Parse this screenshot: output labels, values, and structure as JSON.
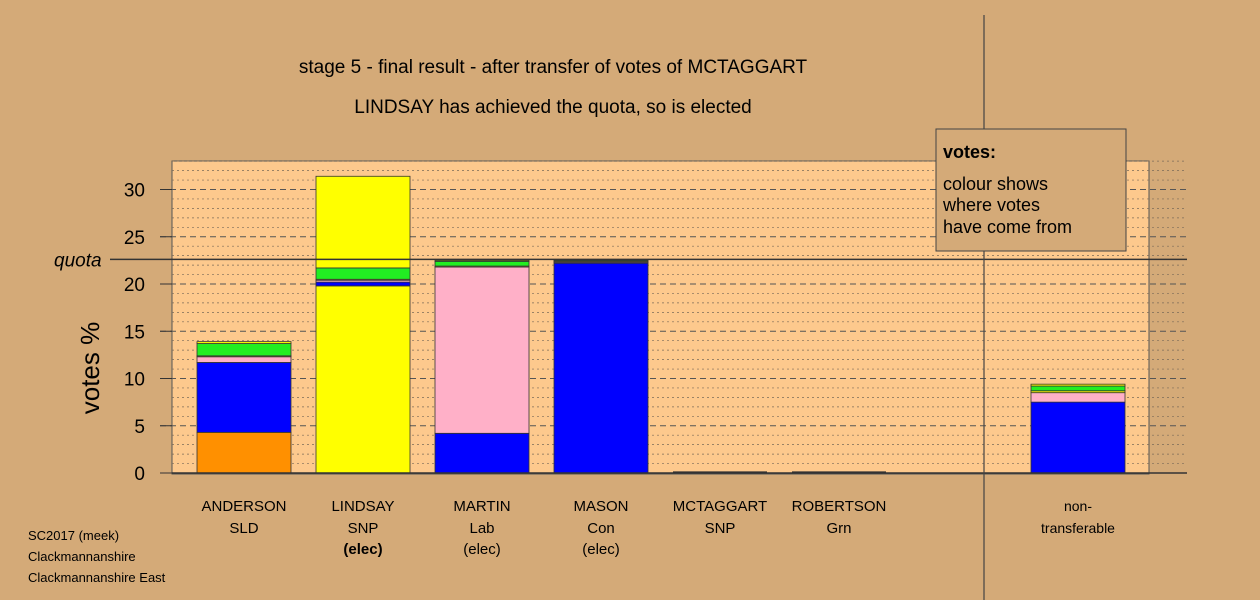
{
  "title_lines": [
    "stage 5 - final result - after transfer of votes of MCTAGGART",
    "LINDSAY has achieved the quota, so is elected"
  ],
  "legend": {
    "heading": "votes:",
    "lines": [
      "colour shows",
      "where votes",
      "have come from"
    ]
  },
  "footer": [
    "SC2017 (meek)",
    "Clackmannanshire",
    "Clackmannanshire East"
  ],
  "colors": {
    "background": "#d4aa78",
    "plot_area": "#fdc98d",
    "SLD": "#ff9000",
    "SNP": "#ffff00",
    "Lab": "#ffb0c8",
    "Con": "#0000ff",
    "Grn": "#22ee22",
    "quota_line": "#333333"
  },
  "chart_data": {
    "type": "bar",
    "stacked": true,
    "ylabel": "votes %",
    "ylim": [
      0,
      33
    ],
    "yticks": [
      0,
      5,
      10,
      15,
      20,
      25,
      30
    ],
    "grid": "dashed horizontal",
    "quota": {
      "label": "quota",
      "value": 22.6
    },
    "categories": [
      {
        "name": "ANDERSON",
        "party": "SLD",
        "status": ""
      },
      {
        "name": "LINDSAY",
        "party": "SNP",
        "status": "(elec)"
      },
      {
        "name": "MARTIN",
        "party": "Lab",
        "status": "(elec)"
      },
      {
        "name": "MASON",
        "party": "Con",
        "status": "(elec)"
      },
      {
        "name": "MCTAGGART",
        "party": "SNP",
        "status": ""
      },
      {
        "name": "ROBERTSON",
        "party": "Grn",
        "status": ""
      },
      {
        "name": "non-",
        "party": "transferable",
        "status": ""
      }
    ],
    "series": [
      {
        "source": "SLD",
        "values": [
          4.3,
          0,
          0,
          0,
          0,
          0,
          0
        ]
      },
      {
        "source": "SNP",
        "values": [
          0,
          19.8,
          0,
          0,
          0,
          0,
          0
        ]
      },
      {
        "source": "Con",
        "values": [
          7.4,
          0.4,
          4.2,
          22.2,
          0,
          0,
          7.5
        ]
      },
      {
        "source": "Lab",
        "values": [
          0.6,
          0.2,
          17.6,
          0.1,
          0,
          0,
          1.0
        ]
      },
      {
        "source": "SNP",
        "values": [
          0.1,
          0.1,
          0.1,
          0.1,
          0,
          0,
          0.2
        ]
      },
      {
        "source": "Grn",
        "values": [
          1.3,
          1.2,
          0.5,
          0.1,
          0,
          0,
          0.5
        ]
      },
      {
        "source": "SNP",
        "values": [
          0.2,
          9.7,
          0.1,
          0.1,
          0,
          0,
          0.2
        ]
      }
    ]
  }
}
